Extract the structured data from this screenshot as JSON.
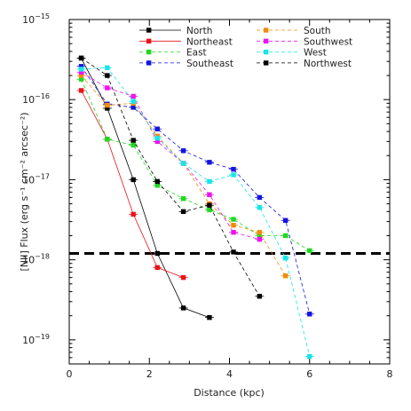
{
  "chart_data": {
    "type": "line",
    "xlabel": "Distance (kpc)",
    "ylabel": "[NII] Flux (erg s⁻¹ cm⁻² arcsec⁻²)",
    "xlim": [
      0,
      8
    ],
    "ylim": [
      5e-20,
      1e-15
    ],
    "yscale": "log",
    "x_ticks": [
      0,
      2,
      4,
      6,
      8
    ],
    "y_ticks": [
      {
        "value": 1e-19,
        "mantissa": "10",
        "exp": "−19"
      },
      {
        "value": 1e-18,
        "mantissa": "10",
        "exp": "−18"
      },
      {
        "value": 1e-17,
        "mantissa": "10",
        "exp": "−17"
      },
      {
        "value": 1e-16,
        "mantissa": "10",
        "exp": "−16"
      },
      {
        "value": 1e-15,
        "mantissa": "10",
        "exp": "−15"
      }
    ],
    "threshold": 1.2e-18,
    "grid": false,
    "legend_position": "top-right",
    "series": [
      {
        "name": "North",
        "color": "#000000",
        "dash": "solid",
        "x": [
          0.3,
          0.95,
          1.6,
          2.2,
          2.85,
          3.5
        ],
        "y": [
          3.3e-16,
          7.8e-17,
          1e-17,
          1.2e-18,
          2.5e-19,
          1.9e-19
        ]
      },
      {
        "name": "Northeast",
        "color": "#e8141a",
        "dash": "solid",
        "x": [
          0.3,
          0.95,
          1.6,
          2.2,
          2.85
        ],
        "y": [
          1.3e-16,
          3.2e-17,
          3.7e-18,
          8e-19,
          6e-19
        ]
      },
      {
        "name": "East",
        "color": "#22d822",
        "dash": "dashed",
        "x": [
          0.3,
          0.95,
          1.6,
          2.2,
          2.85,
          3.5,
          4.1,
          4.75,
          5.4,
          6.0
        ],
        "y": [
          1.8e-16,
          3.2e-17,
          2.7e-17,
          8.5e-18,
          5.8e-18,
          4.2e-18,
          3.2e-18,
          2e-18,
          2e-18,
          1.3e-18
        ]
      },
      {
        "name": "Southeast",
        "color": "#1414e0",
        "dash": "dashed",
        "x": [
          0.3,
          0.95,
          1.6,
          2.2,
          2.85,
          3.5,
          4.1,
          4.75,
          5.4,
          6.0
        ],
        "y": [
          2.6e-16,
          8.8e-17,
          8e-17,
          4.3e-17,
          2.3e-17,
          1.65e-17,
          1.35e-17,
          6e-18,
          3.1e-18,
          2.1e-19
        ]
      },
      {
        "name": "South",
        "color": "#f08c0c",
        "dash": "dashed",
        "x": [
          0.3,
          0.95,
          1.6,
          2.2,
          2.85,
          3.5,
          4.1,
          4.75,
          5.4
        ],
        "y": [
          2e-16,
          8.5e-17,
          9e-17,
          3.5e-17,
          1.6e-17,
          5e-18,
          2.7e-18,
          2.2e-18,
          6.3e-19
        ]
      },
      {
        "name": "Southwest",
        "color": "#ec14ec",
        "dash": "dashed",
        "x": [
          0.3,
          0.95,
          1.6,
          2.2,
          2.85,
          3.5,
          4.1,
          4.75
        ],
        "y": [
          2.2e-16,
          1.4e-16,
          1.1e-16,
          3e-17,
          1.6e-17,
          6.5e-18,
          2.2e-18,
          1.8e-18
        ]
      },
      {
        "name": "West",
        "color": "#16e6e6",
        "dash": "dashed",
        "x": [
          0.3,
          0.95,
          1.6,
          2.2,
          2.85,
          3.5,
          4.1,
          4.75,
          5.4,
          6.0
        ],
        "y": [
          2.4e-16,
          2.5e-16,
          9.5e-17,
          3.3e-17,
          1.6e-17,
          9.5e-18,
          1.15e-17,
          4.5e-18,
          1.05e-18,
          6.2e-20
        ]
      },
      {
        "name": "Northwest",
        "color": "#000000",
        "dash": "dashed",
        "x": [
          0.3,
          0.95,
          1.6,
          2.2,
          2.85,
          3.5,
          4.1,
          4.75
        ],
        "y": [
          3.3e-16,
          2e-16,
          3.1e-17,
          9.5e-18,
          4e-18,
          4.8e-18,
          1.25e-18,
          3.5e-19
        ]
      }
    ]
  }
}
